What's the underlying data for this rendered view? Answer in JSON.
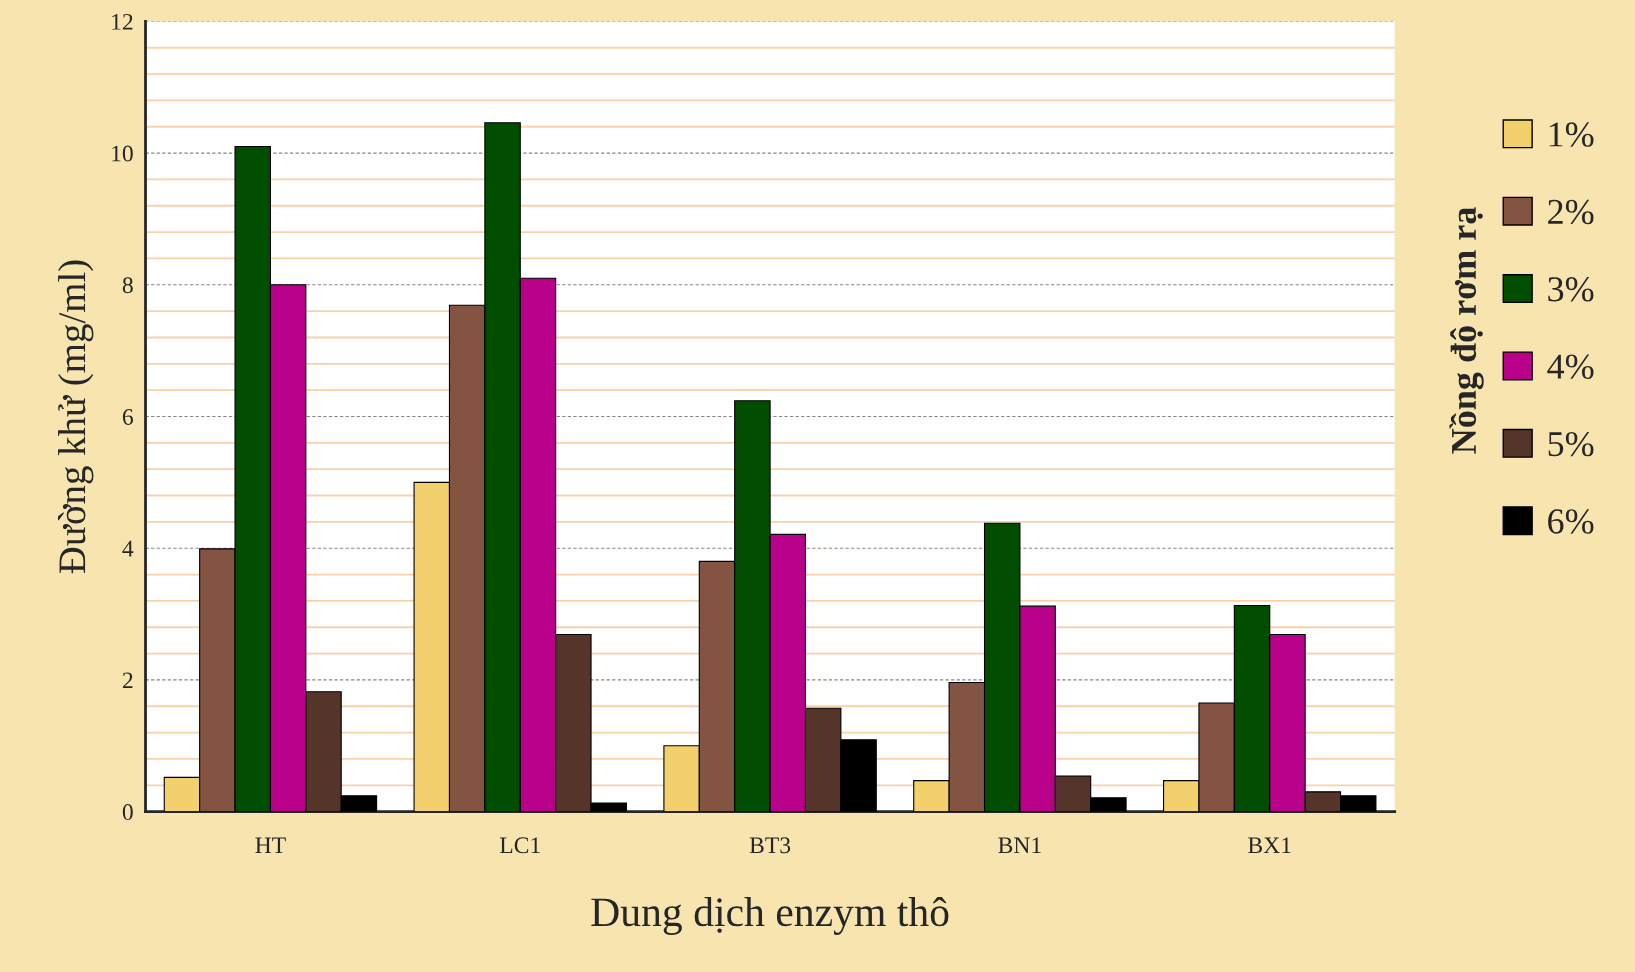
{
  "chart_data": {
    "type": "bar",
    "xlabel": "Dung dịch enzym thô",
    "ylabel": "Đường khử (mg/ml)",
    "legend_title": "Nồng độ rơm rạ",
    "categories": [
      "HT",
      "LC1",
      "BT3",
      "BN1",
      "BX1"
    ],
    "series": [
      {
        "name": "1%",
        "color": "#f2d06b",
        "values": [
          0.52,
          5.0,
          1.0,
          0.47,
          0.47
        ]
      },
      {
        "name": "2%",
        "color": "#845443",
        "values": [
          3.99,
          7.69,
          3.8,
          1.96,
          1.65
        ]
      },
      {
        "name": "3%",
        "color": "#004d00",
        "values": [
          10.1,
          10.46,
          6.24,
          4.38,
          3.13
        ]
      },
      {
        "name": "4%",
        "color": "#b8008a",
        "values": [
          8.0,
          8.1,
          4.21,
          3.12,
          2.69
        ]
      },
      {
        "name": "5%",
        "color": "#55352a",
        "values": [
          1.82,
          2.69,
          1.57,
          0.54,
          0.3
        ]
      },
      {
        "name": "6%",
        "color": "#000000",
        "values": [
          0.24,
          0.13,
          1.09,
          0.21,
          0.24
        ]
      }
    ],
    "ylim": [
      0,
      12
    ],
    "yticks": [
      0,
      {
        "value": 0.4,
        "label": null
      },
      {
        "value": 0.8,
        "label": null
      },
      {
        "value": 1.2,
        "label": null
      },
      {
        "value": 1.6,
        "label": null
      },
      2,
      {
        "value": 2.4,
        "label": null
      },
      {
        "value": 2.8,
        "label": null
      },
      {
        "value": 3.2,
        "label": null
      },
      {
        "value": 3.6,
        "label": null
      },
      4,
      {
        "value": 4.4,
        "label": null
      },
      {
        "value": 4.8,
        "label": null
      },
      {
        "value": 5.2,
        "label": null
      },
      {
        "value": 5.6,
        "label": null
      },
      6,
      {
        "value": 6.4,
        "label": null
      },
      {
        "value": 6.8,
        "label": null
      },
      {
        "value": 7.2,
        "label": null
      },
      {
        "value": 7.6,
        "label": null
      },
      8,
      {
        "value": 8.4,
        "label": null
      },
      {
        "value": 8.8,
        "label": null
      },
      {
        "value": 9.2,
        "label": null
      },
      {
        "value": 9.6,
        "label": null
      },
      10,
      {
        "value": 10.4,
        "label": null
      },
      {
        "value": 10.8,
        "label": null
      },
      {
        "value": 11.2,
        "label": null
      },
      {
        "value": 11.6,
        "label": null
      },
      12
    ],
    "grid": "y",
    "legend": "right"
  }
}
